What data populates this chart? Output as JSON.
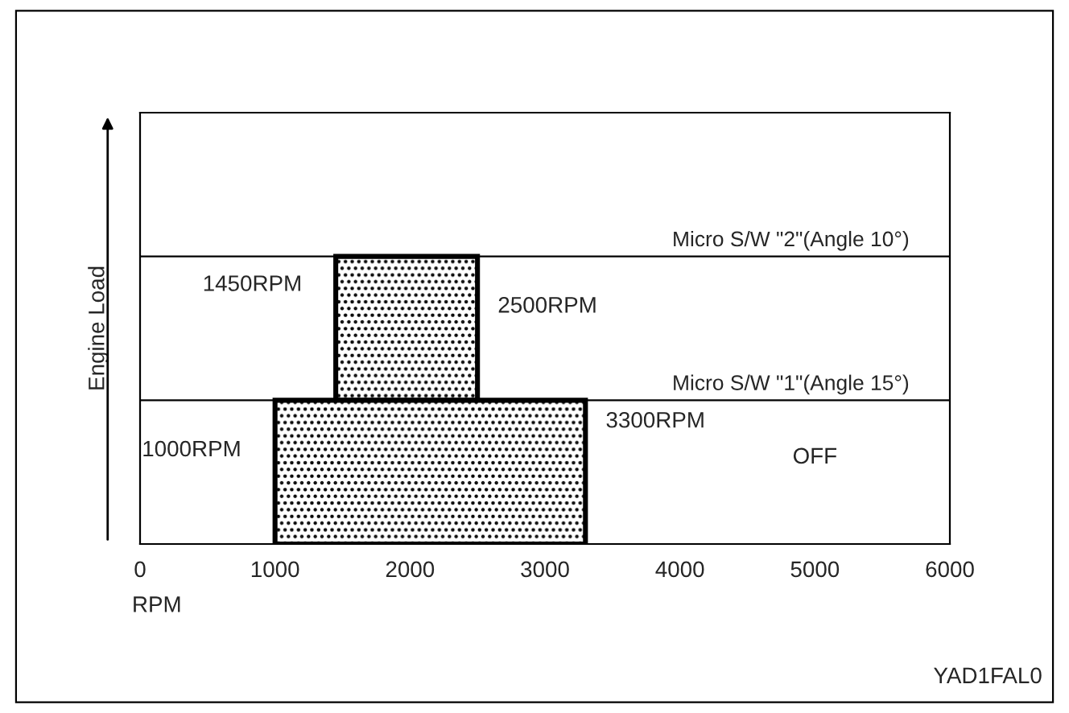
{
  "chart_data": {
    "type": "bar",
    "orientation": "horizontal",
    "categories": [
      null,
      null
    ],
    "values": [
      1050,
      2300
    ],
    "base": [
      1450,
      1000
    ],
    "color": "#000000",
    "xlim": [
      0,
      6000
    ],
    "xticks": [
      0,
      1000,
      2000,
      3000,
      4000,
      5000,
      6000
    ],
    "xlabel": "RPM",
    "ylabel": "Engine Load",
    "tick_labels": "x",
    "grid": false,
    "ref_lines": [
      {
        "axis": "y",
        "label": "Micro S/W \"2\"(Angle 10°)"
      },
      {
        "axis": "y",
        "label": "Micro S/W \"1\"(Angle 15°)"
      }
    ],
    "annotations": [
      {
        "text": "1450RPM",
        "x": 1450
      },
      {
        "text": "2500RPM",
        "x": 2500
      },
      {
        "text": "1000RPM",
        "x": 1000
      },
      {
        "text": "3300RPM",
        "x": 3300
      },
      "OFF",
      "YAD1FAL0"
    ]
  }
}
